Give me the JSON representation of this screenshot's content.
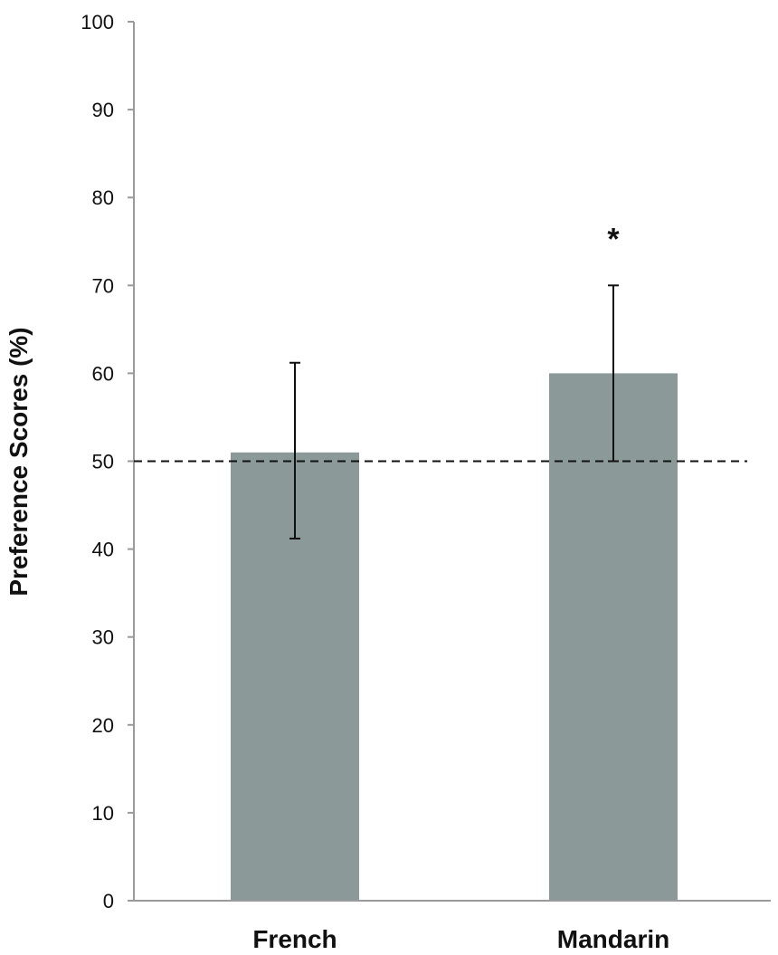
{
  "chart_data": {
    "type": "bar",
    "categories": [
      "French",
      "Mandarin"
    ],
    "values": [
      51,
      60
    ],
    "error_bars": [
      {
        "low": 41.2,
        "high": 61.2
      },
      {
        "low": 50,
        "high": 70
      }
    ],
    "ylabel": "Preference Scores (%)",
    "xlabel": "",
    "ylim": [
      0,
      100
    ],
    "yticks": [
      0,
      10,
      20,
      30,
      40,
      50,
      60,
      70,
      80,
      90,
      100
    ],
    "reference_line": {
      "y": 50,
      "style": "dashed"
    },
    "annotations": [
      {
        "category": "Mandarin",
        "text": "*"
      }
    ],
    "grid": false,
    "bar_color": "#8b9a98",
    "axis_color": "#9a9a9a"
  }
}
